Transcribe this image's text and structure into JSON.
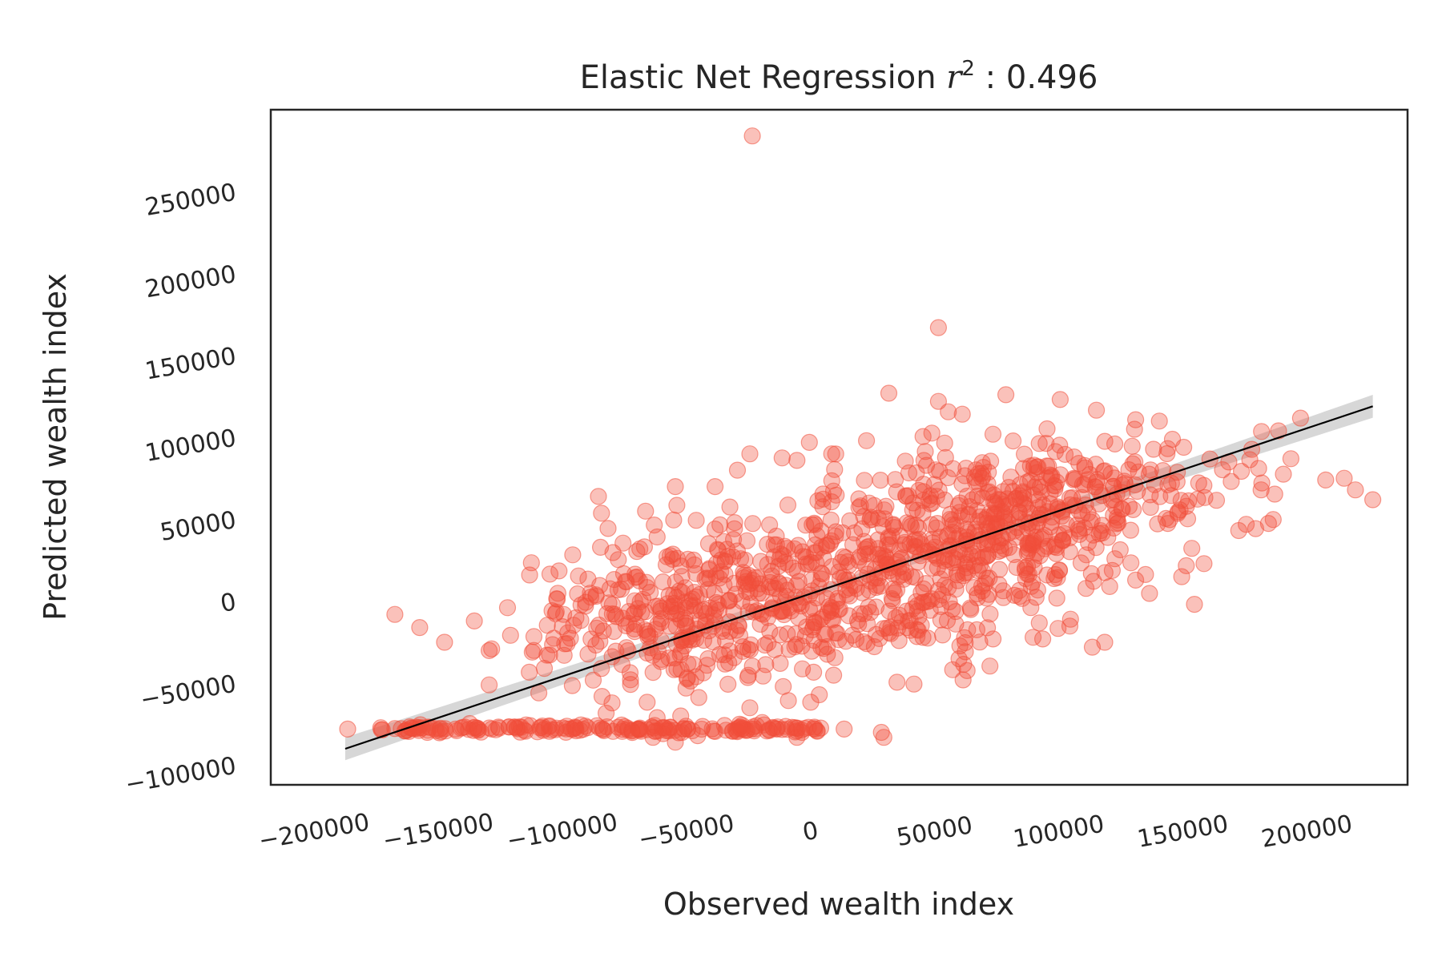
{
  "chart_data": {
    "type": "scatter",
    "title_prefix": "Elastic Net Regression ",
    "title_symbol": "r",
    "title_exponent": "2",
    "title_suffix": " : 0.496",
    "xlabel": "Observed wealth index",
    "ylabel": "Predicted wealth index",
    "xlim": [
      -218000,
      240000
    ],
    "ylim": [
      -112000,
      300000
    ],
    "xticks": [
      -200000,
      -150000,
      -100000,
      -50000,
      0,
      50000,
      100000,
      150000,
      200000
    ],
    "xtick_labels": [
      "−200000",
      "−150000",
      "−100000",
      "−50000",
      "0",
      "50000",
      "100000",
      "150000",
      "200000"
    ],
    "yticks": [
      -100000,
      -50000,
      0,
      50000,
      100000,
      150000,
      200000,
      250000
    ],
    "ytick_labels": [
      "−100000",
      "−50000",
      "0",
      "50000",
      "100000",
      "150000",
      "200000",
      "250000"
    ],
    "grid": false,
    "point_color": "#f04e3a",
    "point_alpha": 0.35,
    "line_color": "#000000",
    "band_color": "#b0b0b0",
    "regression_line": {
      "x": [
        -188000,
        226000
      ],
      "y": [
        -90000,
        119000
      ]
    },
    "clusters": [
      {
        "cx": 40000,
        "cy": 22000,
        "sx": 48000,
        "sy": 33000,
        "n": 580,
        "corr": 0.45
      },
      {
        "cx": -40000,
        "cy": -5000,
        "sx": 32000,
        "sy": 27000,
        "n": 260,
        "corr": 0.25
      },
      {
        "cx": 85000,
        "cy": 60000,
        "sx": 30000,
        "sy": 22000,
        "n": 200,
        "corr": 0.2
      },
      {
        "cx": -80000,
        "cy": -15000,
        "sx": 25000,
        "sy": 18000,
        "n": 80,
        "corr": 0.2
      },
      {
        "cx": 150000,
        "cy": 70000,
        "sx": 28000,
        "sy": 15000,
        "n": 45,
        "corr": 0.1
      }
    ],
    "floor_band": {
      "y": -78000,
      "x_min": -175000,
      "x_max": 5000,
      "n": 190
    },
    "points": [
      [
        -24000,
        284000
      ],
      [
        51000,
        167000
      ],
      [
        31000,
        127000
      ],
      [
        51000,
        122000
      ],
      [
        -187000,
        -78000
      ],
      [
        -168000,
        -8000
      ],
      [
        -158000,
        -16000
      ],
      [
        -136000,
        -12000
      ],
      [
        -129000,
        -29000
      ],
      [
        -112000,
        -30000
      ],
      [
        -130000,
        -51000
      ],
      [
        -100000,
        -8000
      ],
      [
        -87000,
        4000
      ],
      [
        -86000,
        64000
      ],
      [
        -67000,
        55000
      ],
      [
        -55000,
        70000
      ],
      [
        -39000,
        70000
      ],
      [
        -30000,
        80000
      ],
      [
        -25000,
        90000
      ],
      [
        -6000,
        86000
      ],
      [
        -1000,
        97000
      ],
      [
        8000,
        90000
      ],
      [
        22000,
        98000
      ],
      [
        130000,
        105000
      ],
      [
        140000,
        110000
      ],
      [
        168000,
        85000
      ],
      [
        181000,
        68000
      ],
      [
        188000,
        104000
      ],
      [
        193000,
        87000
      ],
      [
        207000,
        74000
      ],
      [
        219000,
        68000
      ],
      [
        226000,
        62000
      ],
      [
        175000,
        47000
      ],
      [
        158000,
        23000
      ],
      [
        149000,
        15000
      ],
      [
        120000,
        9000
      ],
      [
        113000,
        -28000
      ],
      [
        118000,
        -25000
      ],
      [
        93000,
        -23000
      ],
      [
        73000,
        -23000
      ],
      [
        -25000,
        -65000
      ],
      [
        -20000,
        -74000
      ],
      [
        3000,
        -57000
      ],
      [
        -64000,
        -83000
      ],
      [
        -57000,
        -77000
      ],
      [
        -55000,
        -86000
      ],
      [
        -50000,
        -78000
      ],
      [
        -46000,
        -82000
      ],
      [
        28000,
        -80000
      ],
      [
        29000,
        -83000
      ],
      [
        -4000,
        -80000
      ],
      [
        2000,
        -79000
      ],
      [
        -6000,
        -83000
      ],
      [
        13000,
        -78000
      ],
      [
        -14000,
        -78000
      ],
      [
        -148000,
        -25000
      ]
    ]
  }
}
